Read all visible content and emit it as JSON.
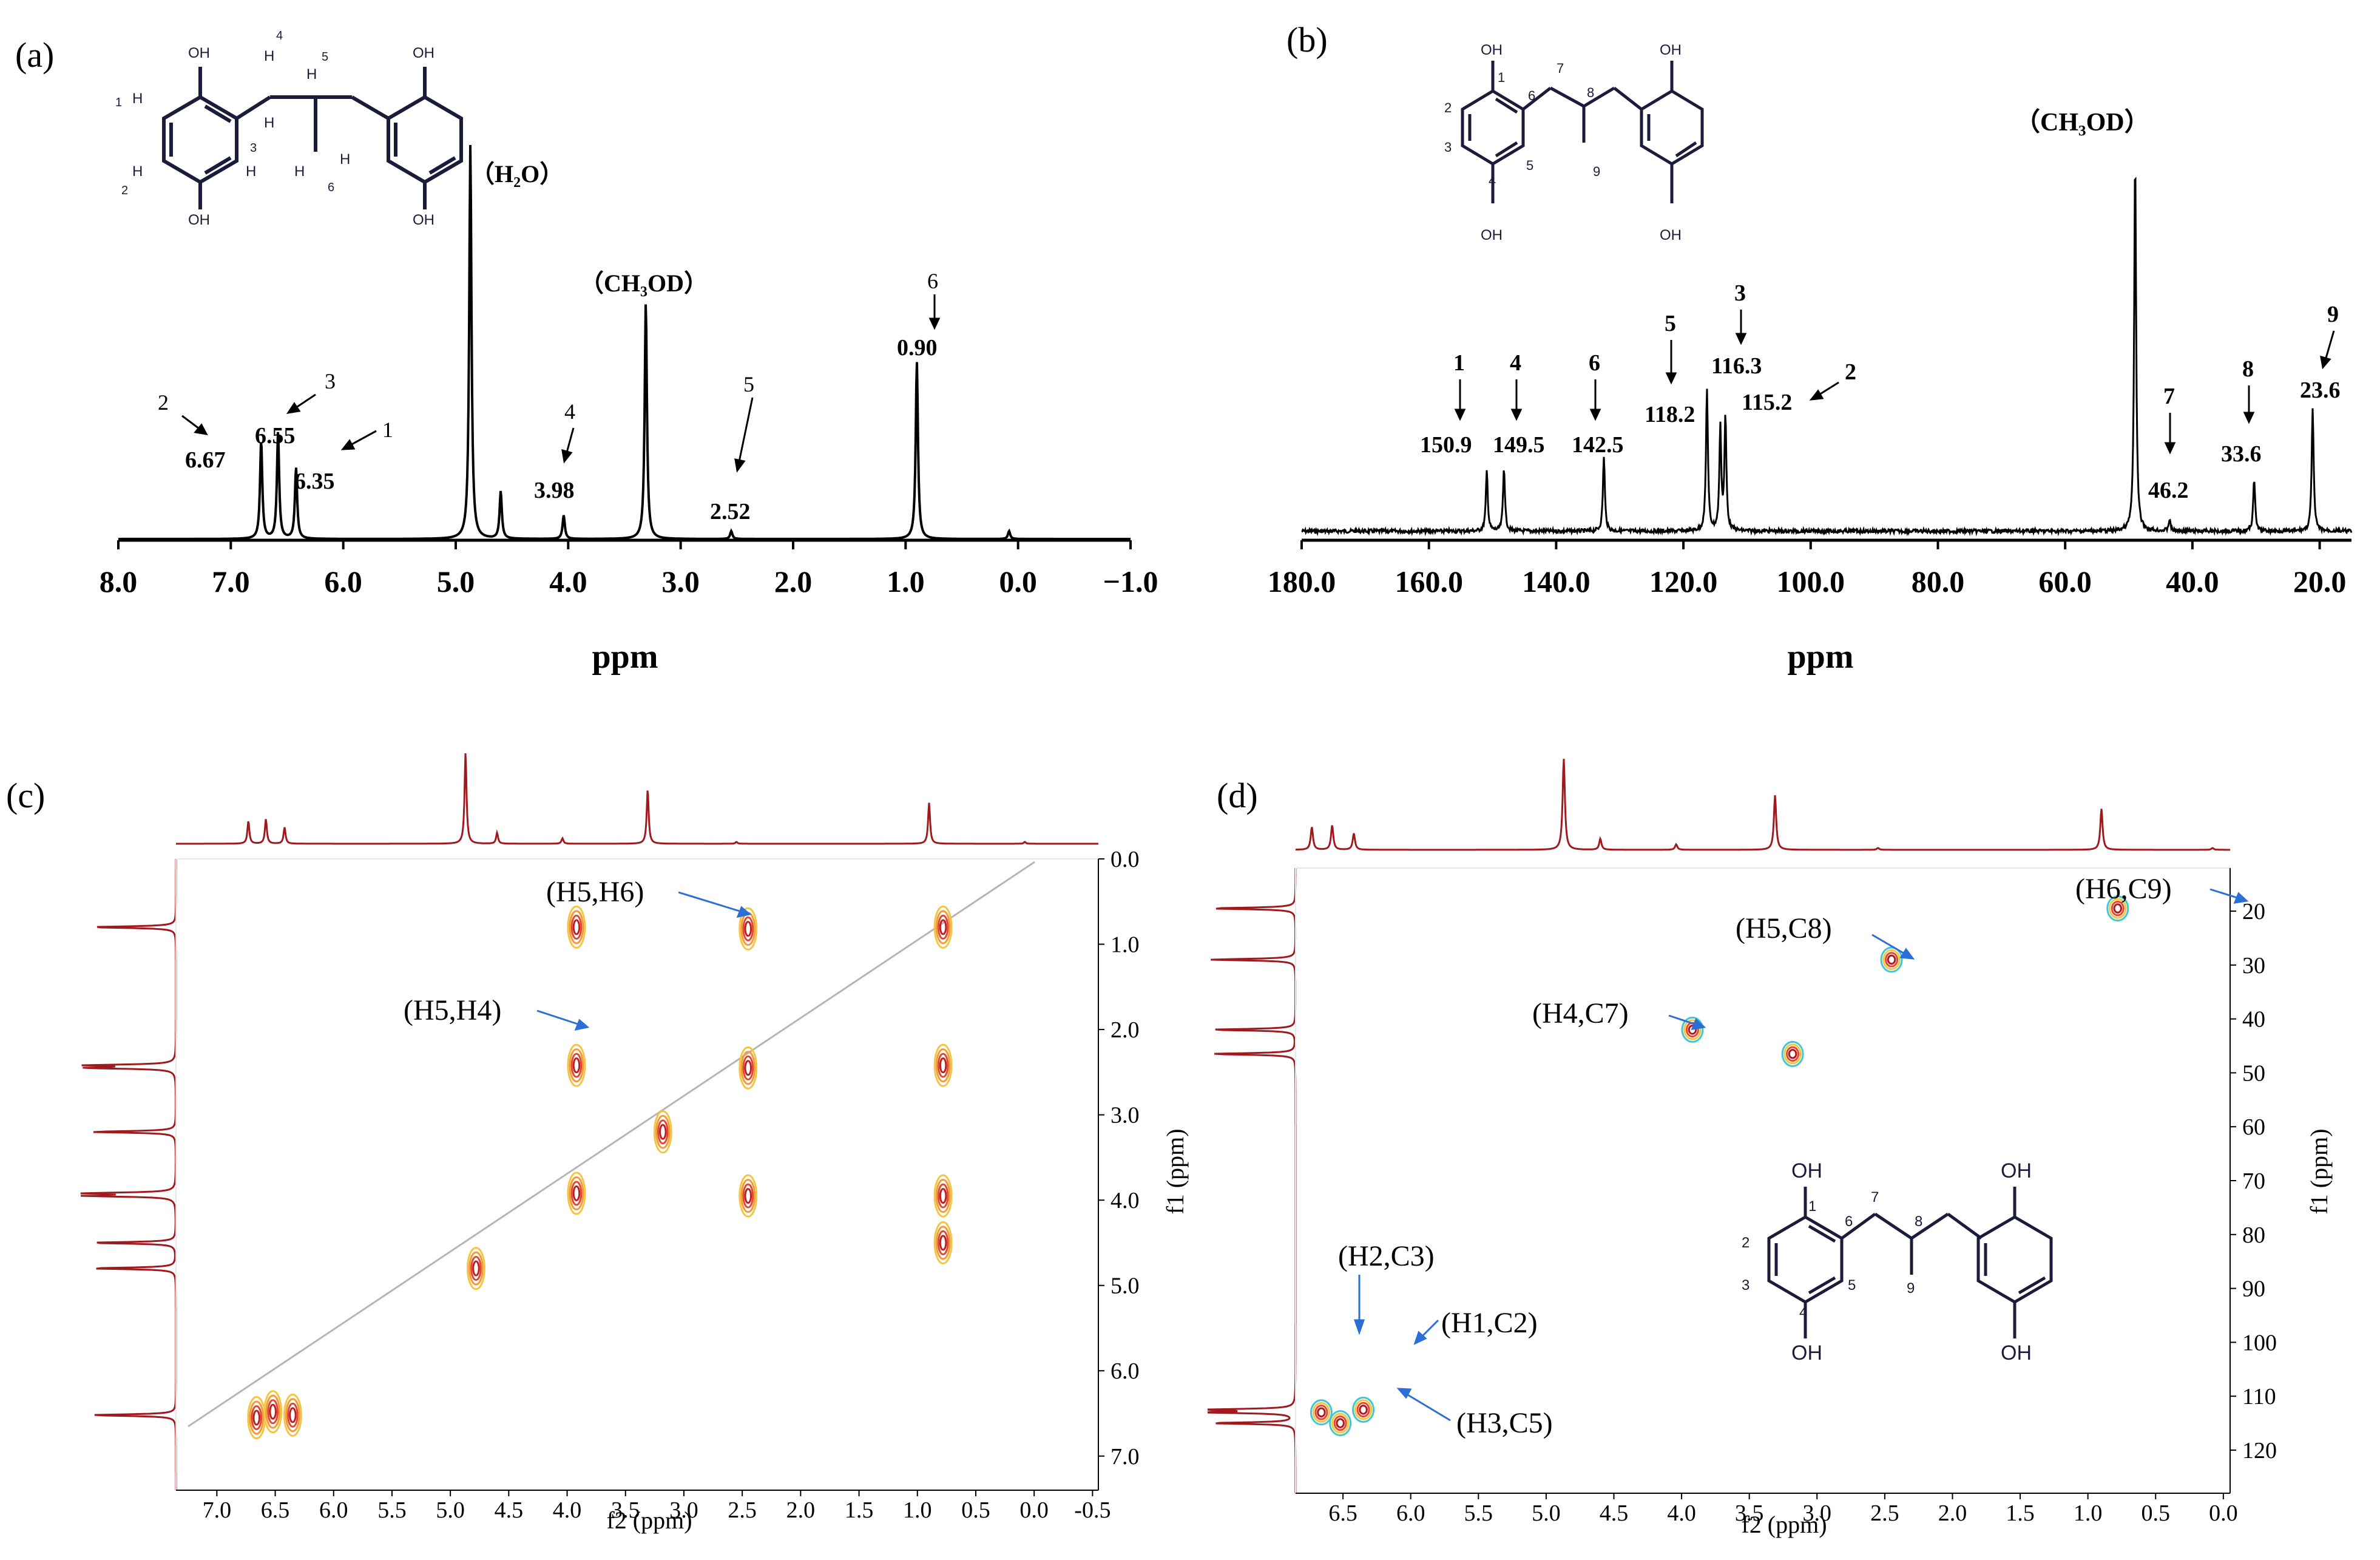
{
  "chart_data": [
    {
      "panel_label": "(a)",
      "type": "line",
      "xlabel": "ppm",
      "xlim": [
        8.0,
        -1.0
      ],
      "xticks": [
        "8.0",
        "7.0",
        "6.0",
        "5.0",
        "4.0",
        "3.0",
        "2.0",
        "1.0",
        "0.0",
        "−1.0"
      ],
      "peaks": [
        {
          "x": 6.73,
          "y": 0.25
        },
        {
          "x": 6.58,
          "y": 0.27
        },
        {
          "x": 6.42,
          "y": 0.18
        },
        {
          "x": 4.87,
          "y": 1.0
        },
        {
          "x": 4.6,
          "y": 0.12
        },
        {
          "x": 4.04,
          "y": 0.06
        },
        {
          "x": 3.31,
          "y": 0.6
        },
        {
          "x": 2.55,
          "y": 0.02
        },
        {
          "x": 0.9,
          "y": 0.45
        },
        {
          "x": 0.08,
          "y": 0.02
        }
      ],
      "annotations": [
        {
          "num": "2",
          "value": "6.67"
        },
        {
          "num": "3",
          "value": "6.55"
        },
        {
          "num": "1",
          "value": "6.35"
        },
        {
          "num": "4",
          "value": "3.98"
        },
        {
          "num": "5",
          "value": "2.52"
        },
        {
          "num": "6",
          "value": "0.90"
        },
        {
          "label": "H2O_label"
        },
        {
          "label": "CH3OD_label"
        }
      ],
      "solvent_labels": {
        "h2o": "（H₂O）",
        "ch3od": "（CH₃OD）"
      },
      "structure_labels": [
        "OH",
        "OH",
        "OH",
        "OH",
        "H",
        "H",
        "H",
        "H",
        "H",
        "H",
        "H",
        "H",
        "1",
        "2",
        "3",
        "4",
        "5",
        "6"
      ]
    },
    {
      "panel_label": "(b)",
      "type": "line",
      "xlabel": "ppm",
      "xlim": [
        180.0,
        15.0
      ],
      "xticks": [
        "180.0",
        "160.0",
        "140.0",
        "120.0",
        "100.0",
        "80.0",
        "60.0",
        "40.0",
        "20.0"
      ],
      "peaks": [
        {
          "x": 150.9,
          "y": 0.16
        },
        {
          "x": 148.2,
          "y": 0.17
        },
        {
          "x": 132.5,
          "y": 0.2
        },
        {
          "x": 116.3,
          "y": 0.38
        },
        {
          "x": 114.2,
          "y": 0.27
        },
        {
          "x": 113.4,
          "y": 0.3
        },
        {
          "x": 49.0,
          "y": 1.0
        },
        {
          "x": 43.6,
          "y": 0.03
        },
        {
          "x": 30.3,
          "y": 0.14
        },
        {
          "x": 21.1,
          "y": 0.33
        }
      ],
      "annotations": [
        {
          "num": "1",
          "value": "150.9"
        },
        {
          "num": "4",
          "value": "149.5"
        },
        {
          "num": "6",
          "value": "142.5"
        },
        {
          "num": "5",
          "value": "118.2"
        },
        {
          "num": "3",
          "value": "116.3"
        },
        {
          "num": "2",
          "value": "115.2"
        },
        {
          "num": "7",
          "value": "46.2"
        },
        {
          "num": "8",
          "value": "33.6"
        },
        {
          "num": "9",
          "value": "23.6"
        }
      ],
      "solvent_label": "（CH₃OD）",
      "structure_labels": [
        "OH",
        "OH",
        "OH",
        "OH",
        "1",
        "2",
        "3",
        "4",
        "5",
        "6",
        "7",
        "8",
        "9"
      ]
    },
    {
      "panel_label": "(c)",
      "type": "scatter",
      "subtype": "2D NMR COSY",
      "xlabel": "f2 (ppm)",
      "ylabel": "f1 (ppm)",
      "xlim": [
        7.35,
        -0.55
      ],
      "ylim": [
        0.0,
        7.4
      ],
      "xticks": [
        "7.0",
        "6.5",
        "6.0",
        "5.5",
        "5.0",
        "4.5",
        "4.0",
        "3.5",
        "3.0",
        "2.5",
        "2.0",
        "1.5",
        "1.0",
        "0.5",
        "0.0",
        "-0.5"
      ],
      "yticks": [
        "0.0",
        "1.0",
        "2.0",
        "3.0",
        "4.0",
        "5.0",
        "6.0",
        "7.0"
      ],
      "cross_peaks": [
        {
          "x": 6.66,
          "y": 6.55
        },
        {
          "x": 6.52,
          "y": 6.48
        },
        {
          "x": 6.35,
          "y": 6.52
        },
        {
          "x": 4.78,
          "y": 4.8
        },
        {
          "x": 3.92,
          "y": 3.92
        },
        {
          "x": 3.92,
          "y": 2.42
        },
        {
          "x": 3.92,
          "y": 0.8
        },
        {
          "x": 3.18,
          "y": 3.2
        },
        {
          "x": 2.45,
          "y": 2.45
        },
        {
          "x": 2.45,
          "y": 3.95
        },
        {
          "x": 2.45,
          "y": 0.82
        },
        {
          "x": 0.78,
          "y": 0.8
        },
        {
          "x": 0.78,
          "y": 2.42
        },
        {
          "x": 0.78,
          "y": 3.95
        },
        {
          "x": 0.78,
          "y": 4.5
        }
      ],
      "annotations": [
        "(H5,H6)",
        "(H5,H4)"
      ]
    },
    {
      "panel_label": "(d)",
      "type": "scatter",
      "subtype": "2D NMR HSQC",
      "xlabel": "f2 (ppm)",
      "ylabel": "f1 (ppm)",
      "xlim": [
        6.85,
        -0.05
      ],
      "ylim": [
        12,
        128
      ],
      "xticks": [
        "6.5",
        "6.0",
        "5.5",
        "5.0",
        "4.5",
        "4.0",
        "3.5",
        "3.0",
        "2.5",
        "2.0",
        "1.5",
        "1.0",
        "0.5",
        "0.0"
      ],
      "yticks": [
        "20",
        "30",
        "40",
        "50",
        "60",
        "70",
        "80",
        "90",
        "100",
        "110",
        "120"
      ],
      "cross_peaks": [
        {
          "x": 6.66,
          "y": 113
        },
        {
          "x": 6.52,
          "y": 115
        },
        {
          "x": 6.35,
          "y": 112.5
        },
        {
          "x": 3.92,
          "y": 42
        },
        {
          "x": 3.18,
          "y": 46.5
        },
        {
          "x": 2.45,
          "y": 29
        },
        {
          "x": 0.78,
          "y": 19.5
        }
      ],
      "annotations": [
        "(H6,C9)",
        "(H5,C8)",
        "(H4,C7)",
        "(H2,C3)",
        "(H1,C2)",
        "(H3,C5)"
      ],
      "structure_labels": [
        "OH",
        "OH",
        "OH",
        "OH",
        "1",
        "2",
        "3",
        "4",
        "5",
        "6",
        "7",
        "8",
        "9"
      ]
    }
  ]
}
